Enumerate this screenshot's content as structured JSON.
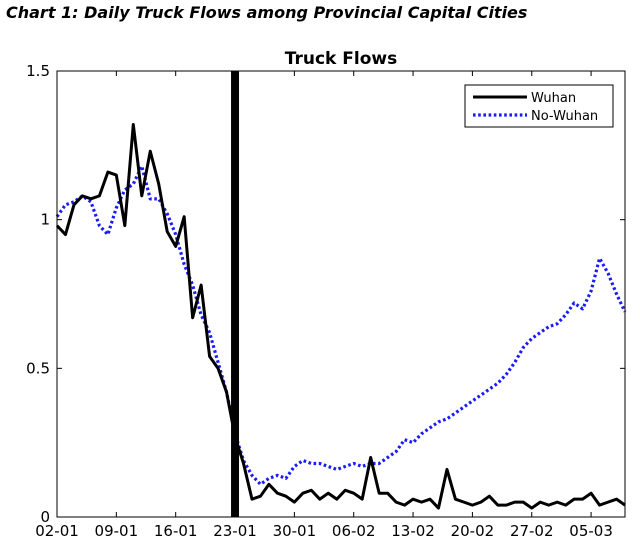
{
  "caption": "Chart 1: Daily Truck Flows among Provincial Capital Cities",
  "chart_data": {
    "type": "line",
    "title": "Truck Flows",
    "xlabel": "",
    "ylabel": "",
    "x_ticks": [
      "02-01",
      "09-01",
      "16-01",
      "23-01",
      "30-01",
      "06-02",
      "13-02",
      "20-02",
      "27-02",
      "05-03"
    ],
    "y_ticks": [
      "0",
      "0.5",
      "1",
      "1.5"
    ],
    "xlim": [
      0,
      67
    ],
    "ylim": [
      0,
      1.5
    ],
    "grid": false,
    "legend_position": "top-right",
    "vline_day": 21,
    "series": [
      {
        "name": "Wuhan",
        "color": "#000000",
        "style": "solid",
        "x": [
          0,
          1,
          2,
          3,
          4,
          5,
          6,
          7,
          8,
          9,
          10,
          11,
          12,
          13,
          14,
          15,
          16,
          17,
          18,
          19,
          20,
          21,
          22,
          23,
          24,
          25,
          26,
          27,
          28,
          29,
          30,
          31,
          32,
          33,
          34,
          35,
          36,
          37,
          38,
          39,
          40,
          41,
          42,
          43,
          44,
          45,
          46,
          47,
          48,
          49,
          50,
          51,
          52,
          53,
          54,
          55,
          56,
          57,
          58,
          59,
          60,
          61,
          62,
          63,
          64,
          65,
          66,
          67
        ],
        "y": [
          0.98,
          0.95,
          1.05,
          1.08,
          1.07,
          1.08,
          1.16,
          1.15,
          0.98,
          1.32,
          1.08,
          1.23,
          1.12,
          0.96,
          0.91,
          1.01,
          0.67,
          0.78,
          0.54,
          0.5,
          0.42,
          0.27,
          0.18,
          0.06,
          0.07,
          0.11,
          0.08,
          0.07,
          0.05,
          0.08,
          0.09,
          0.06,
          0.08,
          0.06,
          0.09,
          0.08,
          0.06,
          0.2,
          0.08,
          0.08,
          0.05,
          0.04,
          0.06,
          0.05,
          0.06,
          0.03,
          0.16,
          0.06,
          0.05,
          0.04,
          0.05,
          0.07,
          0.04,
          0.04,
          0.05,
          0.05,
          0.03,
          0.05,
          0.04,
          0.05,
          0.04,
          0.06,
          0.06,
          0.08,
          0.04,
          0.05,
          0.06,
          0.04
        ]
      },
      {
        "name": "No-Wuhan",
        "color": "#1a1aff",
        "style": "dotted",
        "x": [
          0,
          1,
          2,
          3,
          4,
          5,
          6,
          7,
          8,
          9,
          10,
          11,
          12,
          13,
          14,
          15,
          16,
          17,
          18,
          19,
          20,
          21,
          22,
          23,
          24,
          25,
          26,
          27,
          28,
          29,
          30,
          31,
          32,
          33,
          34,
          35,
          36,
          37,
          38,
          39,
          40,
          41,
          42,
          43,
          44,
          45,
          46,
          47,
          48,
          49,
          50,
          51,
          52,
          53,
          54,
          55,
          56,
          57,
          58,
          59,
          60,
          61,
          62,
          63,
          64,
          65,
          66,
          67
        ],
        "y": [
          1.01,
          1.05,
          1.06,
          1.08,
          1.06,
          0.98,
          0.95,
          1.04,
          1.1,
          1.12,
          1.18,
          1.07,
          1.07,
          1.02,
          0.95,
          0.85,
          0.78,
          0.68,
          0.62,
          0.52,
          0.42,
          0.28,
          0.19,
          0.14,
          0.11,
          0.13,
          0.14,
          0.13,
          0.17,
          0.19,
          0.18,
          0.18,
          0.17,
          0.16,
          0.17,
          0.18,
          0.17,
          0.18,
          0.18,
          0.2,
          0.22,
          0.26,
          0.25,
          0.28,
          0.3,
          0.32,
          0.33,
          0.35,
          0.37,
          0.39,
          0.41,
          0.43,
          0.45,
          0.48,
          0.52,
          0.57,
          0.6,
          0.62,
          0.64,
          0.65,
          0.68,
          0.72,
          0.7,
          0.76,
          0.87,
          0.82,
          0.75,
          0.69
        ]
      }
    ]
  }
}
